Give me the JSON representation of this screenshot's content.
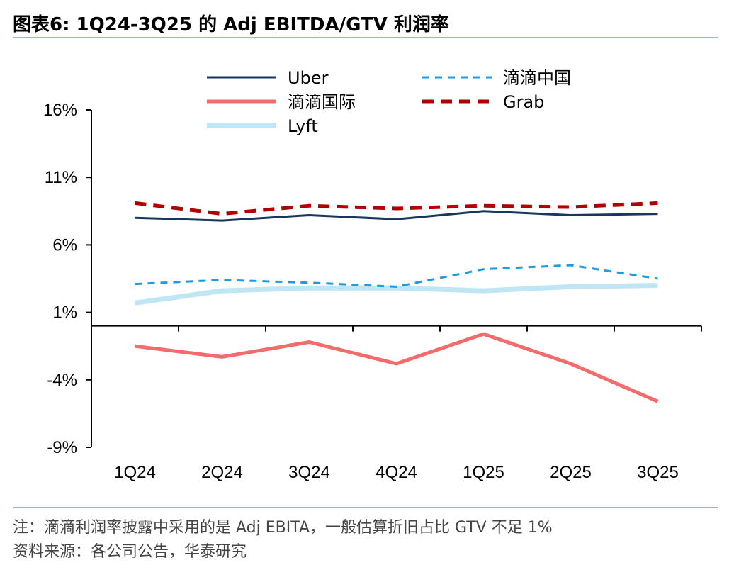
{
  "header": {
    "title": "图表6:  1Q24-3Q25 的 Adj EBITDA/GTV 利润率"
  },
  "footer": {
    "note": "注：滴滴利润率披露中采用的是 Adj EBITA，一般估算折旧占比 GTV 不足 1%",
    "source": "资料来源：各公司公告，华泰研究"
  },
  "chart_data": {
    "type": "line",
    "title": "1Q24-3Q25 的 Adj EBITDA/GTV 利润率",
    "categories": [
      "1Q24",
      "2Q24",
      "3Q24",
      "4Q24",
      "1Q25",
      "2Q25",
      "3Q25"
    ],
    "ylim": [
      -9,
      16
    ],
    "yticks": [
      16,
      11,
      6,
      1,
      -4,
      -9
    ],
    "ytick_labels": [
      "16%",
      "11%",
      "6%",
      "1%",
      "-4%",
      "-9%"
    ],
    "xlabel": "",
    "ylabel": "",
    "legend_position": "top",
    "series": [
      {
        "name": "Uber",
        "values": [
          8.0,
          7.8,
          8.2,
          7.9,
          8.5,
          8.2,
          8.3
        ],
        "color": "#17375e",
        "style": "solid",
        "width": 3
      },
      {
        "name": "滴滴中国",
        "values": [
          3.1,
          3.4,
          3.2,
          2.9,
          4.2,
          4.5,
          3.5
        ],
        "color": "#1e9be0",
        "style": "dashed",
        "width": 3
      },
      {
        "name": "滴滴国际",
        "values": [
          -1.5,
          -2.3,
          -1.2,
          -2.8,
          -0.6,
          -2.8,
          -5.6
        ],
        "color": "#f46b6b",
        "style": "solid",
        "width": 5
      },
      {
        "name": "Grab",
        "values": [
          9.1,
          8.3,
          8.9,
          8.7,
          8.9,
          8.8,
          9.1
        ],
        "color": "#b00000",
        "style": "dashed",
        "width": 5
      },
      {
        "name": "Lyft",
        "values": [
          1.7,
          2.6,
          2.8,
          2.8,
          2.6,
          2.9,
          3.0
        ],
        "color": "#bfe6f5",
        "style": "solid",
        "width": 7
      }
    ]
  }
}
